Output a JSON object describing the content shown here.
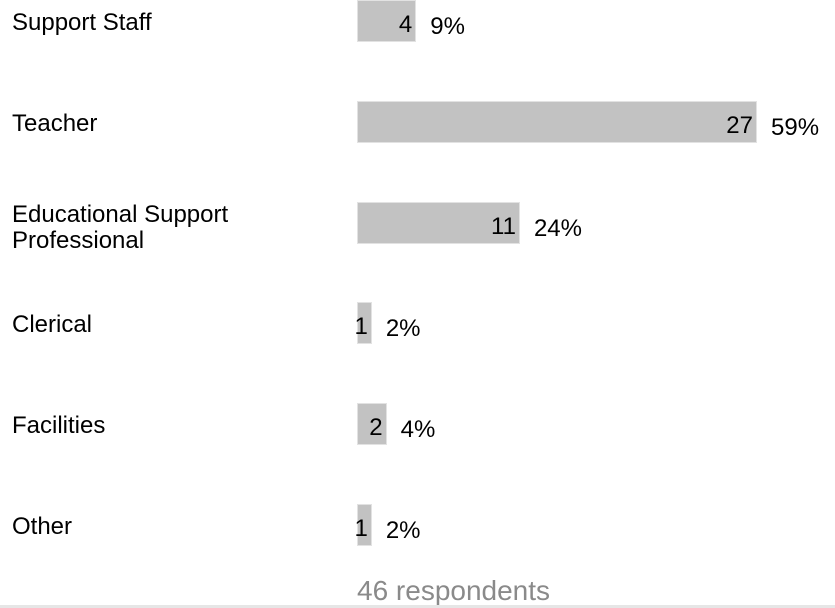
{
  "chart_data": {
    "type": "bar",
    "orientation": "horizontal",
    "categories": [
      "Support Staff",
      "Teacher",
      "Educational Support Professional",
      "Clerical",
      "Facilities",
      "Other"
    ],
    "values": [
      4,
      27,
      11,
      1,
      2,
      1
    ],
    "percent_labels": [
      "9%",
      "59%",
      "24%",
      "2%",
      "4%",
      "2%"
    ],
    "xlim": [
      0,
      27
    ],
    "grid": false,
    "legend": "none",
    "bar_color": "#c2c2c2"
  },
  "footer": {
    "respondents": "46 respondents"
  }
}
